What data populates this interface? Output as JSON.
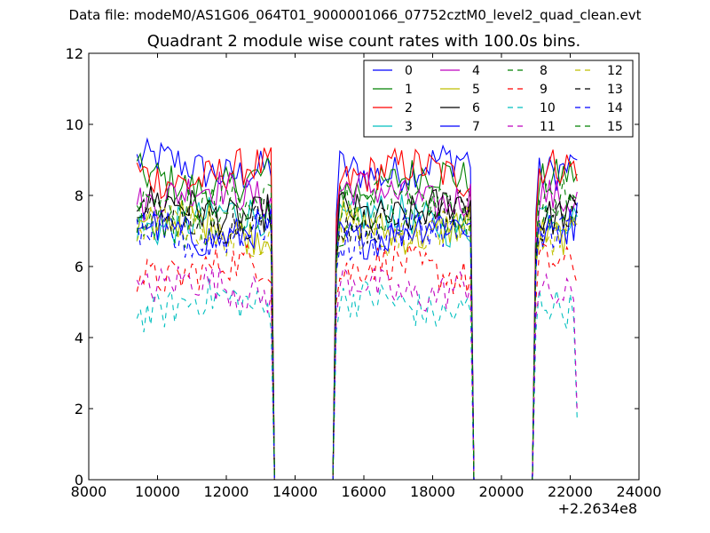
{
  "suptitle": "Data file: modeM0/AS1G06_064T01_9000001066_07752cztM0_level2_quad_clean.evt",
  "chart_data": {
    "type": "line",
    "title": "Quadrant 2 module wise count rates with 100.0s bins.",
    "xlabel": "",
    "ylabel": "",
    "x_offset_label": "+2.2634e8",
    "xlim": [
      8000,
      24000
    ],
    "ylim": [
      0,
      12
    ],
    "xticks": [
      "8000",
      "10000",
      "12000",
      "14000",
      "16000",
      "18000",
      "20000",
      "22000",
      "24000"
    ],
    "yticks": [
      "0",
      "2",
      "4",
      "6",
      "8",
      "10",
      "12"
    ],
    "grid": false,
    "legend_position": "top-right",
    "legend_columns": 4,
    "segments": [
      {
        "start": 9400,
        "end": 13300
      },
      {
        "start": 15200,
        "end": 19100
      },
      {
        "start": 21000,
        "end": 22200
      }
    ],
    "gap_x": [
      [
        13400,
        15100
      ],
      [
        19200,
        20900
      ]
    ],
    "series": [
      {
        "name": "0",
        "color": "#0000ff",
        "dash": "solid",
        "level": 8.8,
        "last": 9.0
      },
      {
        "name": "1",
        "color": "#008000",
        "dash": "solid",
        "level": 8.4,
        "last": 8.6
      },
      {
        "name": "2",
        "color": "#ff0000",
        "dash": "solid",
        "level": 8.6,
        "last": 8.4
      },
      {
        "name": "3",
        "color": "#00bfbf",
        "dash": "solid",
        "level": 7.3,
        "last": 7.4
      },
      {
        "name": "4",
        "color": "#bf00bf",
        "dash": "solid",
        "level": 8.0,
        "last": 8.1
      },
      {
        "name": "5",
        "color": "#bfbf00",
        "dash": "solid",
        "level": 7.1,
        "last": 7.2
      },
      {
        "name": "6",
        "color": "#000000",
        "dash": "solid",
        "level": 7.6,
        "last": 7.7
      },
      {
        "name": "7",
        "color": "#0000ff",
        "dash": "solid",
        "level": 7.0,
        "last": 7.8
      },
      {
        "name": "8",
        "color": "#008000",
        "dash": "dashed",
        "level": 7.3,
        "last": 7.6
      },
      {
        "name": "9",
        "color": "#ff0000",
        "dash": "dashed",
        "level": 5.9,
        "last": 5.5
      },
      {
        "name": "10",
        "color": "#00bfbf",
        "dash": "dashed",
        "level": 4.9,
        "last": 1.7
      },
      {
        "name": "11",
        "color": "#bf00bf",
        "dash": "dashed",
        "level": 5.4,
        "last": 1.9
      },
      {
        "name": "12",
        "color": "#bfbf00",
        "dash": "dashed",
        "level": 7.0,
        "last": 7.1
      },
      {
        "name": "13",
        "color": "#000000",
        "dash": "dashed",
        "level": 7.4,
        "last": 7.5
      },
      {
        "name": "14",
        "color": "#0000ff",
        "dash": "dashed",
        "level": 6.9,
        "last": 7.0
      },
      {
        "name": "15",
        "color": "#008000",
        "dash": "dashed",
        "level": 7.8,
        "last": 7.9
      }
    ]
  }
}
